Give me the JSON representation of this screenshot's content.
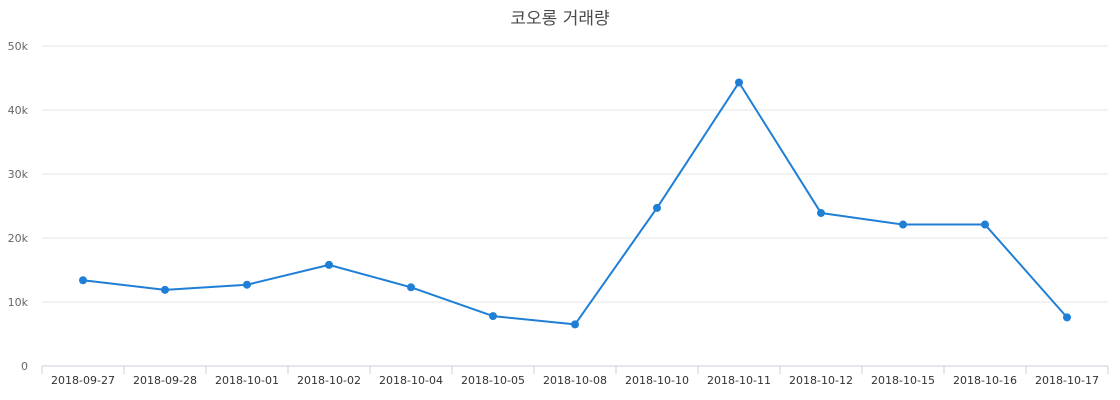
{
  "chart_data": {
    "type": "line",
    "title": "코오롱 거래량",
    "xlabel": "",
    "ylabel": "",
    "categories": [
      "2018-09-27",
      "2018-09-28",
      "2018-10-01",
      "2018-10-02",
      "2018-10-04",
      "2018-10-05",
      "2018-10-08",
      "2018-10-10",
      "2018-10-11",
      "2018-10-12",
      "2018-10-15",
      "2018-10-16",
      "2018-10-17"
    ],
    "series": [
      {
        "values": [
          13400,
          11900,
          12700,
          15800,
          12300,
          7800,
          6500,
          24700,
          44300,
          23900,
          22100,
          22100,
          7600
        ]
      }
    ],
    "ylim": [
      0,
      50000
    ],
    "yticks": [
      0,
      10000,
      20000,
      30000,
      40000,
      50000
    ],
    "ytick_labels": [
      "0",
      "10k",
      "20k",
      "30k",
      "40k",
      "50k"
    ],
    "grid": true,
    "legend": "none",
    "line_color": "#1f7fd6"
  }
}
